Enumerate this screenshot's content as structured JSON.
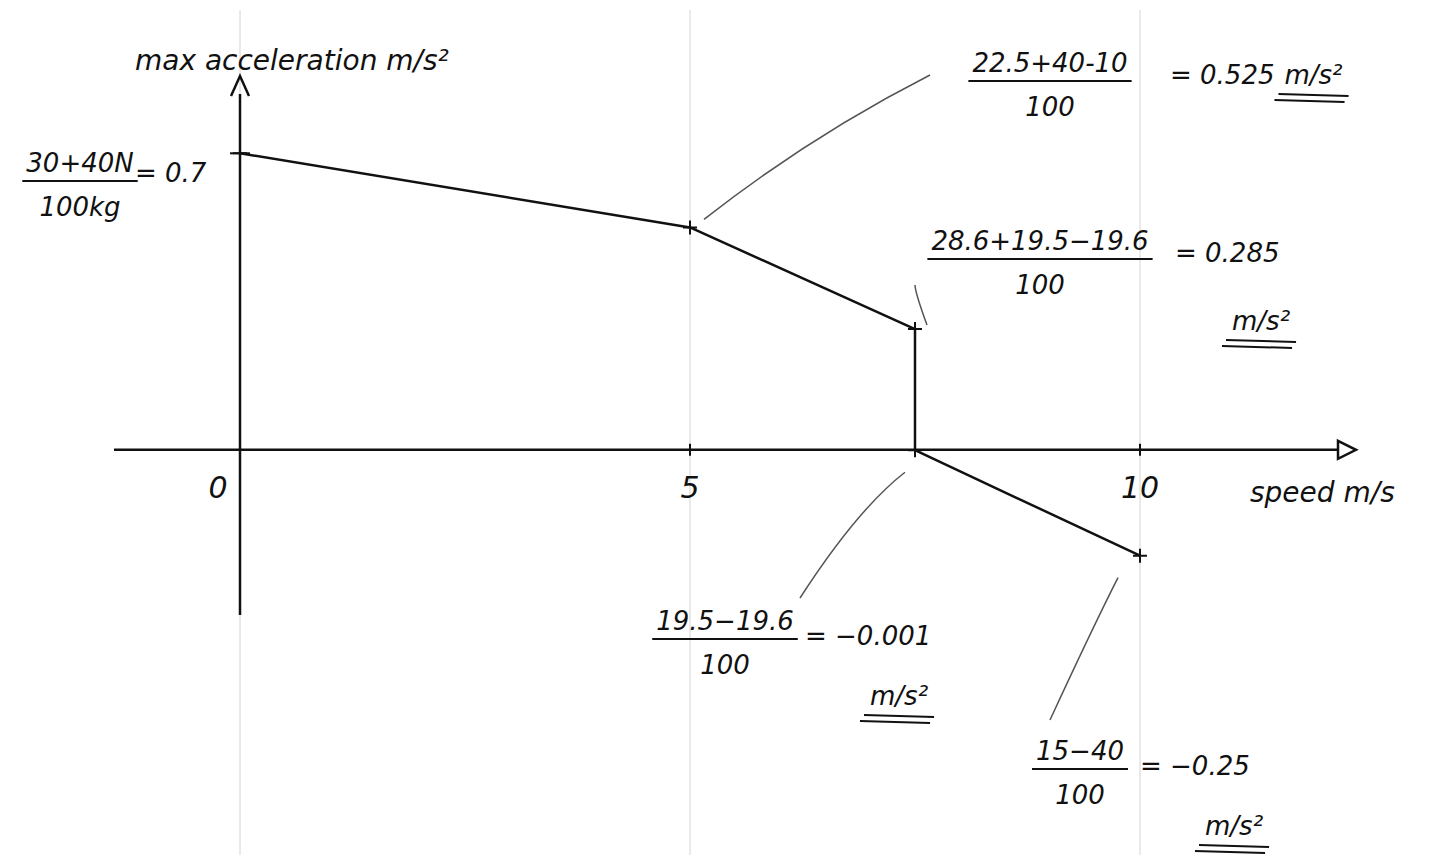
{
  "chart_data": {
    "type": "line",
    "y_label": "max acceleration m/s²",
    "x_label": "speed m/s",
    "x": [
      0,
      5,
      7.5,
      7.5,
      10
    ],
    "series": [
      {
        "name": "max acceleration",
        "color": "#111111",
        "values": [
          0.7,
          0.525,
          0.285,
          -0.001,
          -0.25
        ]
      }
    ],
    "xlim": [
      -1.4,
      12.2
    ],
    "ylim": [
      -0.39,
      0.84
    ],
    "xticks": [
      0,
      5,
      10
    ],
    "grid": true,
    "tick_labels": "x",
    "annotations": [
      {
        "numerator": "30+40N",
        "denominator": "100kg",
        "result": "= 0.7",
        "x": 0,
        "y": 0.7
      },
      {
        "numerator": "22.5+40-10",
        "denominator": "100",
        "result": "= 0.525",
        "unit": "m/s²",
        "x": 5,
        "y": 0.525
      },
      {
        "numerator": "28.6+19.5−19.6",
        "denominator": "100",
        "result": "= 0.285",
        "unit": "m/s²",
        "x": 7.5,
        "y": 0.285
      },
      {
        "numerator": "19.5−19.6",
        "denominator": "100",
        "result": "= −0.001",
        "unit": "m/s²",
        "x": 7.5,
        "y": -0.001
      },
      {
        "numerator": "15−40",
        "denominator": "100",
        "result": "= −0.25",
        "unit": "m/s²",
        "x": 10,
        "y": -0.25
      }
    ]
  }
}
